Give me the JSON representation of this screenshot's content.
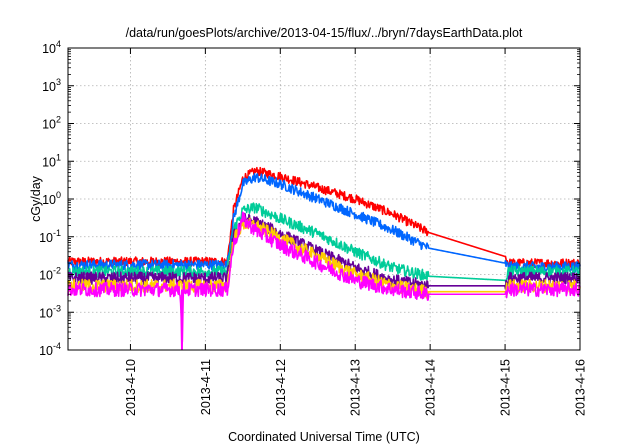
{
  "chart_data": {
    "type": "line",
    "title": "/data/run/goesPlots/archive/2013-04-15/flux/../bryn/7daysEarthData.plot",
    "xlabel": "Coordinated Universal Time (UTC)",
    "ylabel": "cGy/day",
    "y_scale": "log",
    "xlim": [
      "2013-04-09T04:00",
      "2013-04-16T00:00"
    ],
    "ylim": [
      0.0001,
      10000
    ],
    "x_ticks": [
      "2013-4-10",
      "2013-4-11",
      "2013-4-12",
      "2013-4-13",
      "2013-4-14",
      "2013-4-15",
      "2013-4-16"
    ],
    "y_ticks": [
      {
        "base": "10",
        "exp": "-4"
      },
      {
        "base": "10",
        "exp": "-3"
      },
      {
        "base": "10",
        "exp": "-2"
      },
      {
        "base": "10",
        "exp": "-1"
      },
      {
        "base": "10",
        "exp": "0"
      },
      {
        "base": "10",
        "exp": "1"
      },
      {
        "base": "10",
        "exp": "2"
      },
      {
        "base": "10",
        "exp": "3"
      },
      {
        "base": "10",
        "exp": "4"
      }
    ],
    "grid": true,
    "legend": "none",
    "series": [
      {
        "color": "#ff0000",
        "x": [
          "2013-04-09T04:00",
          "2013-04-11T07:00",
          "2013-04-11T09:00",
          "2013-04-11T12:00",
          "2013-04-11T16:00",
          "2013-04-12T00:00",
          "2013-04-12T12:00",
          "2013-04-13T00:00",
          "2013-04-13T12:00",
          "2013-04-13T23:30",
          "2013-04-15T00:00",
          "2013-04-15T01:00",
          "2013-04-16T00:00"
        ],
        "y": [
          0.022,
          0.022,
          0.5,
          3.5,
          5.5,
          4.0,
          2.0,
          1.0,
          0.4,
          0.13,
          0.03,
          0.02,
          0.02
        ]
      },
      {
        "color": "#0066ff",
        "x": [
          "2013-04-09T04:00",
          "2013-04-11T07:00",
          "2013-04-11T09:00",
          "2013-04-11T12:00",
          "2013-04-11T16:00",
          "2013-04-12T00:00",
          "2013-04-12T12:00",
          "2013-04-13T00:00",
          "2013-04-13T12:00",
          "2013-04-13T23:30",
          "2013-04-15T00:00",
          "2013-04-15T01:00",
          "2013-04-16T00:00"
        ],
        "y": [
          0.018,
          0.018,
          0.3,
          2.5,
          3.8,
          2.5,
          1.0,
          0.4,
          0.15,
          0.05,
          0.02,
          0.016,
          0.016
        ]
      },
      {
        "color": "#00cc99",
        "x": [
          "2013-04-09T04:00",
          "2013-04-11T07:00",
          "2013-04-11T09:00",
          "2013-04-11T12:00",
          "2013-04-11T16:00",
          "2013-04-12T00:00",
          "2013-04-12T12:00",
          "2013-04-13T00:00",
          "2013-04-13T12:00",
          "2013-04-13T23:30",
          "2013-04-15T00:00",
          "2013-04-15T01:00",
          "2013-04-16T00:00"
        ],
        "y": [
          0.012,
          0.012,
          0.15,
          0.5,
          0.6,
          0.3,
          0.12,
          0.04,
          0.015,
          0.009,
          0.007,
          0.012,
          0.012
        ]
      },
      {
        "color": "#660099",
        "x": [
          "2013-04-09T04:00",
          "2013-04-11T07:00",
          "2013-04-11T09:00",
          "2013-04-11T12:00",
          "2013-04-11T16:00",
          "2013-04-12T00:00",
          "2013-04-12T12:00",
          "2013-04-13T00:00",
          "2013-04-13T12:00",
          "2013-04-13T23:30",
          "2013-04-15T00:00",
          "2013-04-15T01:00",
          "2013-04-16T00:00"
        ],
        "y": [
          0.008,
          0.008,
          0.1,
          0.3,
          0.25,
          0.12,
          0.04,
          0.015,
          0.007,
          0.005,
          0.005,
          0.008,
          0.008
        ]
      },
      {
        "color": "#ffcc00",
        "x": [
          "2013-04-09T04:00",
          "2013-04-11T07:00",
          "2013-04-11T09:00",
          "2013-04-11T12:00",
          "2013-04-11T16:00",
          "2013-04-12T00:00",
          "2013-04-12T12:00",
          "2013-04-13T00:00",
          "2013-04-13T12:00",
          "2013-04-13T23:30",
          "2013-04-15T00:00",
          "2013-04-15T01:00",
          "2013-04-16T00:00"
        ],
        "y": [
          0.005,
          0.005,
          0.08,
          0.22,
          0.2,
          0.09,
          0.03,
          0.01,
          0.005,
          0.0035,
          0.0035,
          0.005,
          0.005
        ]
      },
      {
        "color": "#ff00ff",
        "x": [
          "2013-04-09T04:00",
          "2013-04-10T16:00",
          "2013-04-10T16:30",
          "2013-04-10T17:00",
          "2013-04-11T07:00",
          "2013-04-11T09:00",
          "2013-04-11T12:00",
          "2013-04-11T16:00",
          "2013-04-12T00:00",
          "2013-04-12T12:00",
          "2013-04-13T00:00",
          "2013-04-13T12:00",
          "2013-04-13T23:30",
          "2013-04-15T00:00",
          "2013-04-15T01:00",
          "2013-04-16T00:00"
        ],
        "y": [
          0.004,
          0.004,
          0.0001,
          0.004,
          0.004,
          0.06,
          0.3,
          0.15,
          0.06,
          0.02,
          0.007,
          0.004,
          0.003,
          0.003,
          0.004,
          0.004
        ]
      }
    ]
  }
}
